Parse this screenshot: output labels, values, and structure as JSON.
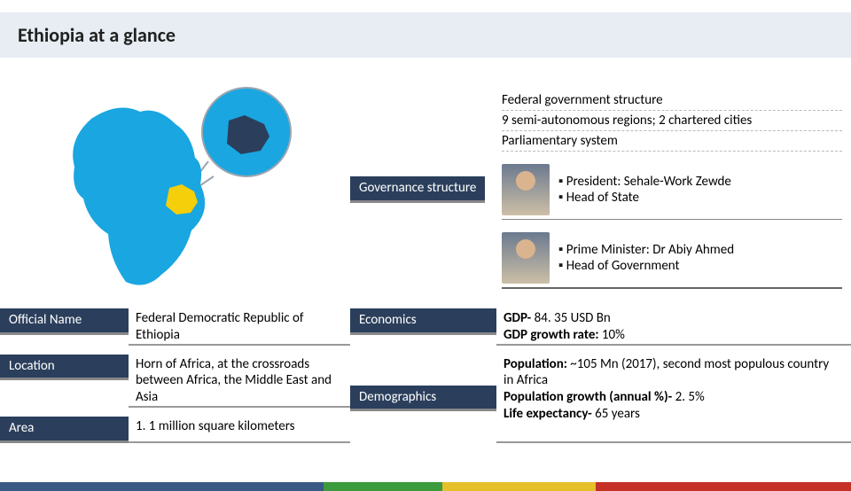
{
  "title": "Ethiopia at a glance",
  "map": {
    "continent_fill": "#1aa6e0",
    "ocean_fill": "#ffffff",
    "highlight_fill": "#f5cf0a",
    "callout_stroke": "#9aa5b1",
    "ethiopia_shape_fill": "#2b3f5c"
  },
  "governance": {
    "label": "Governance structure",
    "lines": [
      "Federal government structure",
      "9 semi-autonomous regions; 2 chartered cities",
      "Parliamentary system"
    ],
    "leaders": [
      {
        "bullets": [
          "President: Sehale-Work Zewde",
          "Head of State"
        ]
      },
      {
        "bullets": [
          "Prime Minister: Dr Abiy Ahmed",
          "Head of Government"
        ]
      }
    ]
  },
  "facts_left": [
    {
      "label": "Official Name",
      "value": "Federal Democratic Republic of Ethiopia"
    },
    {
      "label": "Location",
      "value": "Horn of Africa, at the crossroads between Africa, the Middle East and Asia"
    },
    {
      "label": "Area",
      "value": "1. 1 million square kilometers"
    }
  ],
  "facts_right": [
    {
      "label": "Economics",
      "value_html": "<b>GDP-</b> 84. 35 USD Bn<br><b>GDP growth rate:</b> 10%"
    },
    {
      "label": "Demographics",
      "value_html": "<b>Population:</b> ~105 Mn (2017), second most populous country in Africa<br><b>Population growth (annual %)-</b> 2. 5%<br><b>Life expectancy-</b> 65 years"
    }
  ],
  "colors": {
    "title_bg": "#e7edf3",
    "dark_box": "#2b3f5c",
    "footer": [
      "#3a5a84",
      "#3c9b3c",
      "#e5c02b",
      "#c33127"
    ]
  }
}
